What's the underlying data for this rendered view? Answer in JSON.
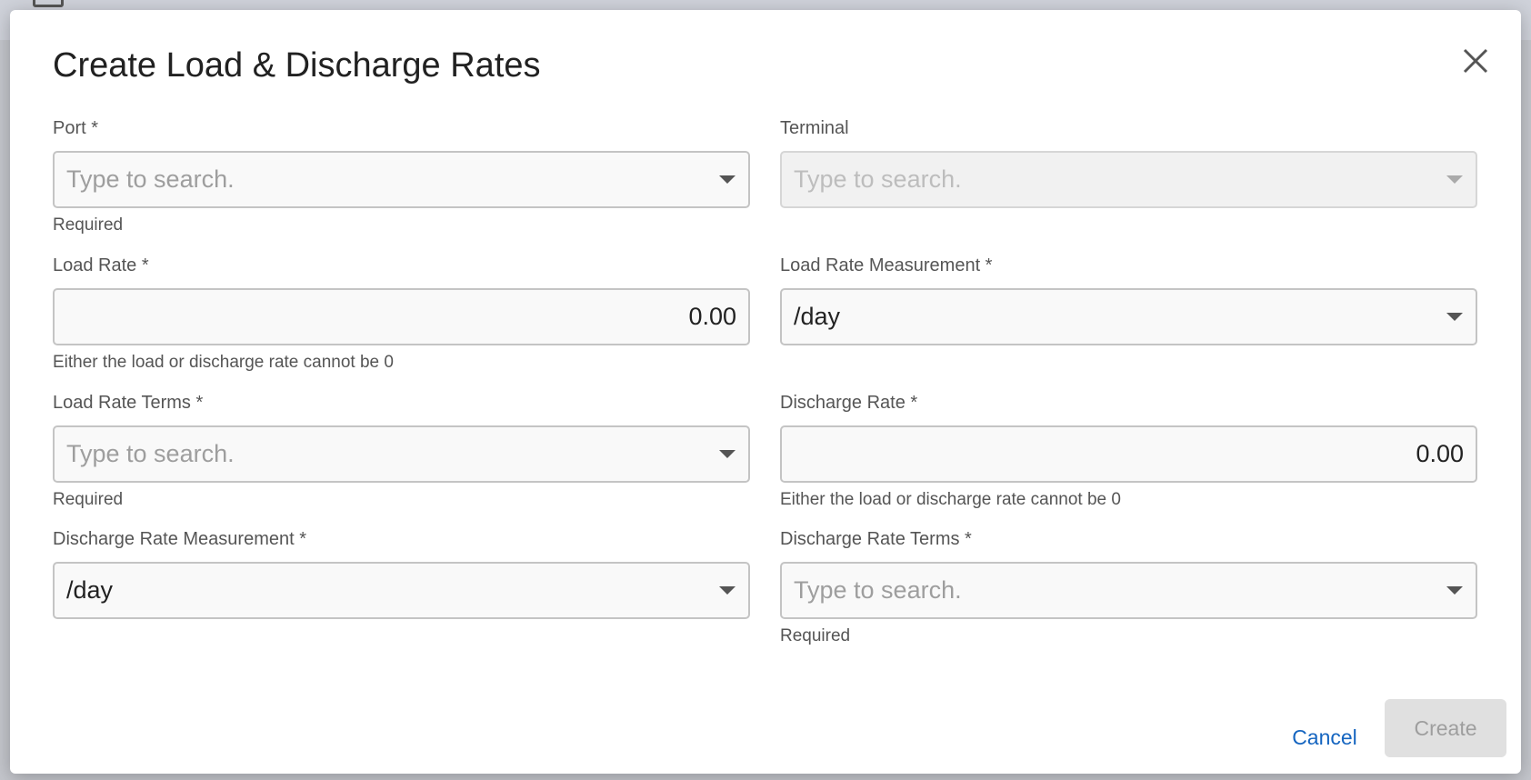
{
  "dialog": {
    "title": "Create Load & Discharge Rates",
    "close_icon": "close-icon"
  },
  "fields": {
    "port": {
      "label": "Port *",
      "placeholder": "Type to search.",
      "helper": "Required"
    },
    "terminal": {
      "label": "Terminal",
      "placeholder": "Type to search.",
      "disabled": true
    },
    "load_rate": {
      "label": "Load Rate *",
      "value": "0.00",
      "helper": "Either the load or discharge rate cannot be 0"
    },
    "load_rate_measurement": {
      "label": "Load Rate Measurement *",
      "value": "/day"
    },
    "load_rate_terms": {
      "label": "Load Rate Terms *",
      "placeholder": "Type to search.",
      "helper": "Required"
    },
    "discharge_rate": {
      "label": "Discharge Rate *",
      "value": "0.00",
      "helper": "Either the load or discharge rate cannot be 0"
    },
    "discharge_rate_measurement": {
      "label": "Discharge Rate Measurement *",
      "value": "/day"
    },
    "discharge_rate_terms": {
      "label": "Discharge Rate Terms *",
      "placeholder": "Type to search.",
      "helper": "Required"
    }
  },
  "actions": {
    "cancel": "Cancel",
    "create": "Create"
  },
  "colors": {
    "accent": "#1565c0",
    "disabled_button": "#e0e0e0"
  }
}
